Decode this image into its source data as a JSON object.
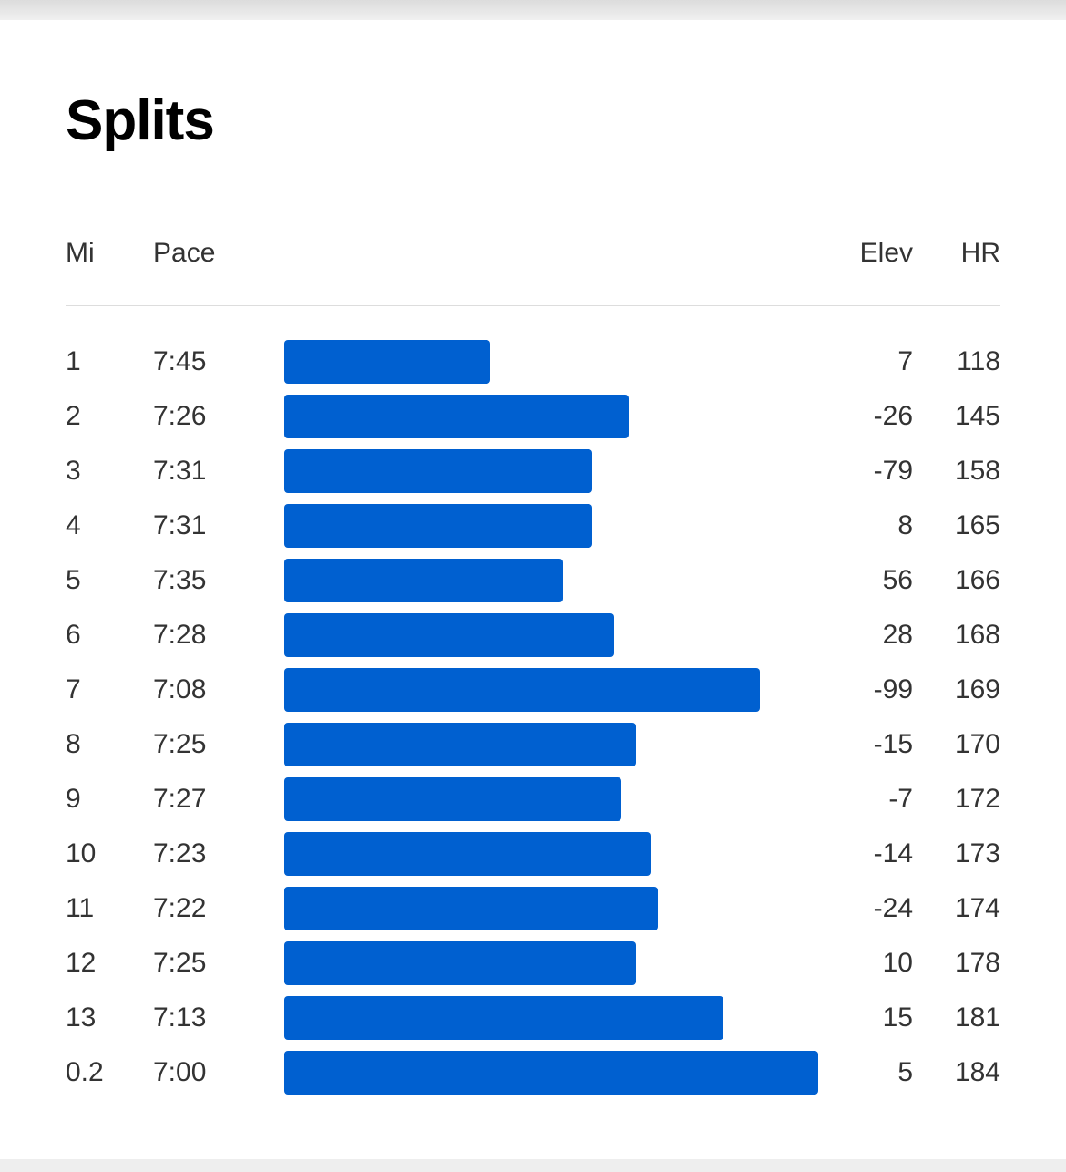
{
  "title": "Splits",
  "columns": {
    "mi": "Mi",
    "pace": "Pace",
    "elev": "Elev",
    "hr": "HR"
  },
  "colors": {
    "bar": "#0060d0"
  },
  "chart_data": {
    "type": "bar",
    "orientation": "horizontal",
    "categories": [
      "1",
      "2",
      "3",
      "4",
      "5",
      "6",
      "7",
      "8",
      "9",
      "10",
      "11",
      "12",
      "13",
      "0.2"
    ],
    "pace_seconds_per_mile": [
      465,
      446,
      451,
      451,
      455,
      448,
      428,
      445,
      447,
      443,
      442,
      445,
      433,
      420
    ]
  },
  "splits": [
    {
      "mi": "1",
      "pace": "7:45",
      "elev": "7",
      "hr": "118"
    },
    {
      "mi": "2",
      "pace": "7:26",
      "elev": "-26",
      "hr": "145"
    },
    {
      "mi": "3",
      "pace": "7:31",
      "elev": "-79",
      "hr": "158"
    },
    {
      "mi": "4",
      "pace": "7:31",
      "elev": "8",
      "hr": "165"
    },
    {
      "mi": "5",
      "pace": "7:35",
      "elev": "56",
      "hr": "166"
    },
    {
      "mi": "6",
      "pace": "7:28",
      "elev": "28",
      "hr": "168"
    },
    {
      "mi": "7",
      "pace": "7:08",
      "elev": "-99",
      "hr": "169"
    },
    {
      "mi": "8",
      "pace": "7:25",
      "elev": "-15",
      "hr": "170"
    },
    {
      "mi": "9",
      "pace": "7:27",
      "elev": "-7",
      "hr": "172"
    },
    {
      "mi": "10",
      "pace": "7:23",
      "elev": "-14",
      "hr": "173"
    },
    {
      "mi": "11",
      "pace": "7:22",
      "elev": "-24",
      "hr": "174"
    },
    {
      "mi": "12",
      "pace": "7:25",
      "elev": "10",
      "hr": "178"
    },
    {
      "mi": "13",
      "pace": "7:13",
      "elev": "15",
      "hr": "181"
    },
    {
      "mi": "0.2",
      "pace": "7:00",
      "elev": "5",
      "hr": "184"
    }
  ]
}
